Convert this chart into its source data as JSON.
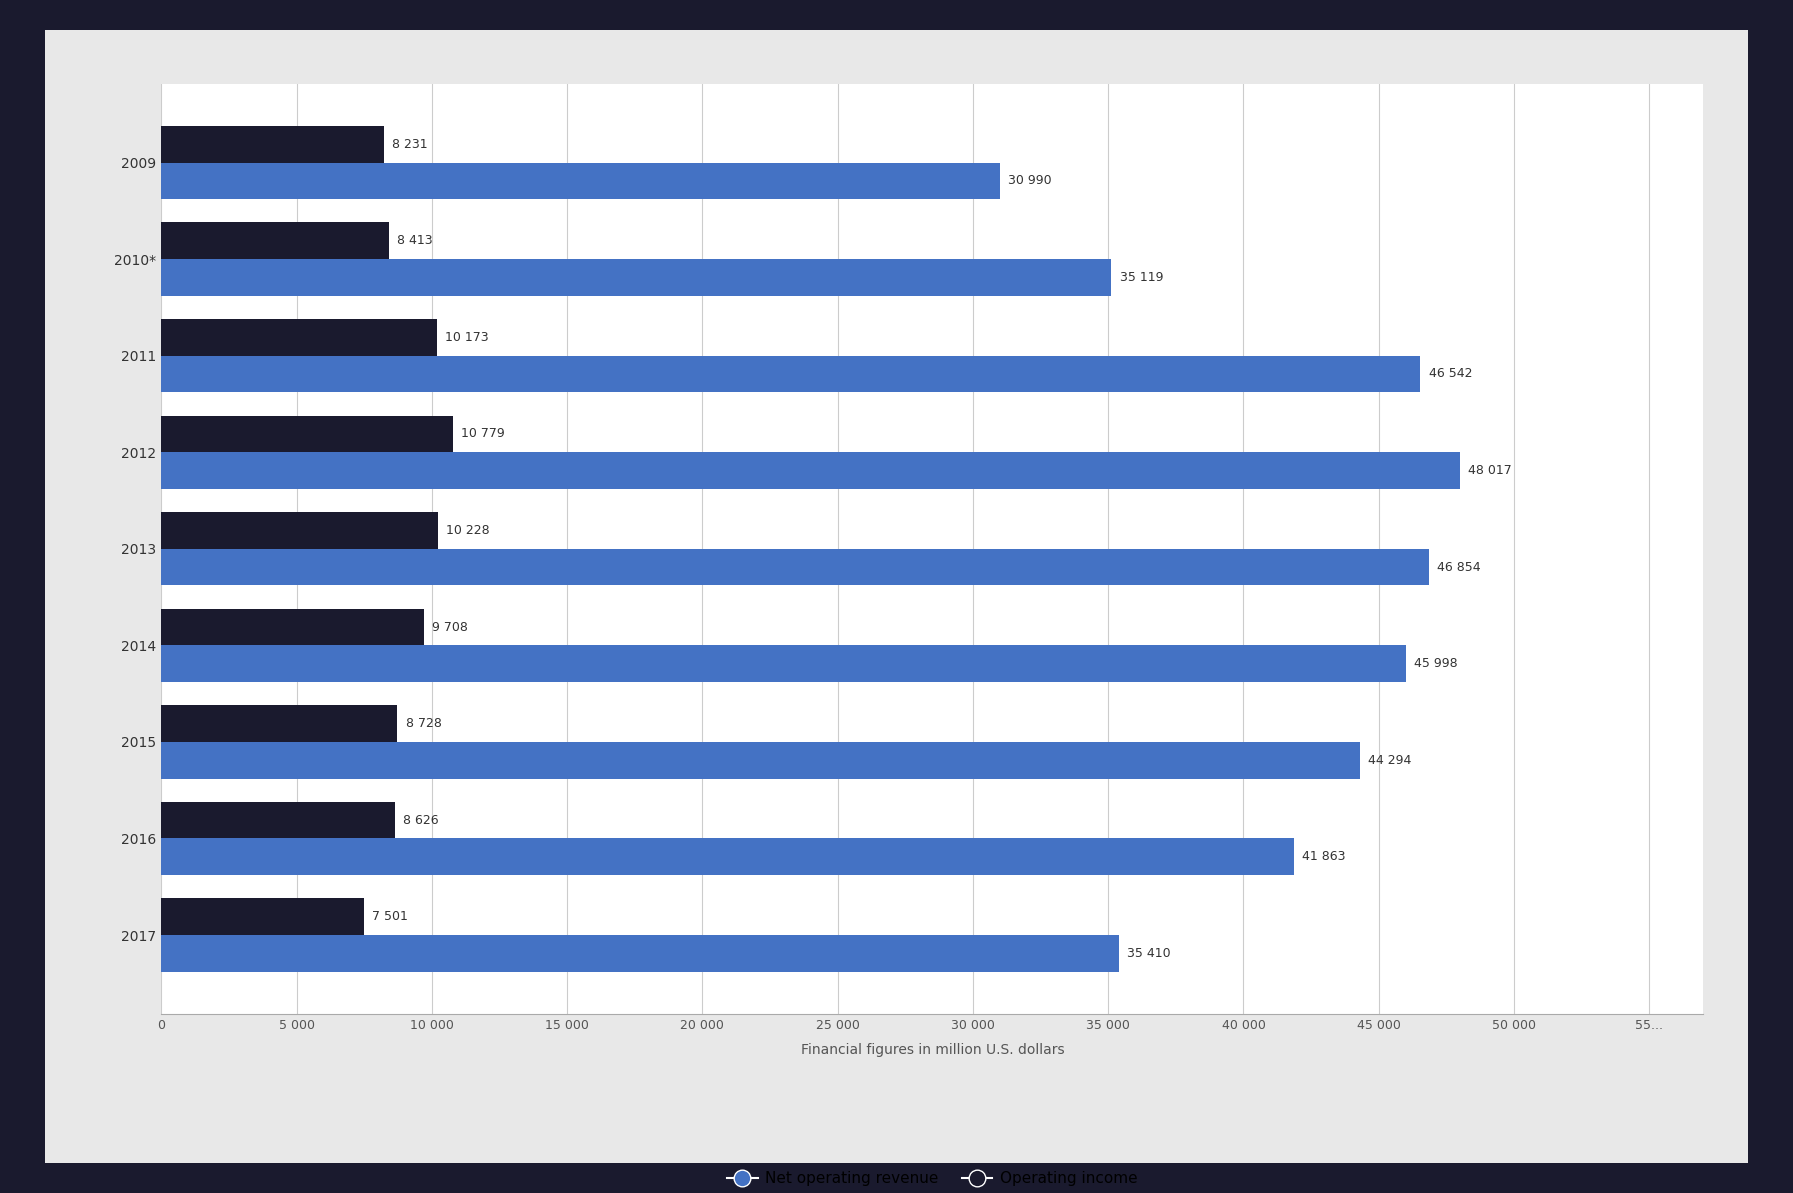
{
  "years": [
    "2009",
    "2010*",
    "2011",
    "2012",
    "2013",
    "2014",
    "2015",
    "2016",
    "2017"
  ],
  "net_revenue": [
    30990,
    35119,
    46542,
    48017,
    46854,
    45998,
    44294,
    41863,
    35410
  ],
  "op_income": [
    8231,
    8413,
    10173,
    10779,
    10228,
    9708,
    8728,
    8626,
    7501
  ],
  "revenue_color": "#4472c4",
  "income_color": "#1a1a2e",
  "bar_height": 0.38,
  "xlim": [
    0,
    57000
  ],
  "xticks": [
    0,
    5000,
    10000,
    15000,
    20000,
    25000,
    30000,
    35000,
    40000,
    45000,
    50000,
    55000
  ],
  "xtick_labels": [
    "0",
    "5 000",
    "10 000",
    "15 000",
    "20 000",
    "25 000",
    "30 000",
    "35 000",
    "40 000",
    "45 000",
    "50 000",
    "55..."
  ],
  "xlabel": "Financial figures in million U.S. dollars",
  "legend_revenue": "Net operating revenue",
  "legend_income": "Operating income",
  "outer_border_color": "#1a1a2e",
  "inner_border_color": "#e8e8e8",
  "chart_bg": "#ffffff",
  "label_fontsize": 9,
  "axis_fontsize": 9,
  "year_fontsize": 10
}
